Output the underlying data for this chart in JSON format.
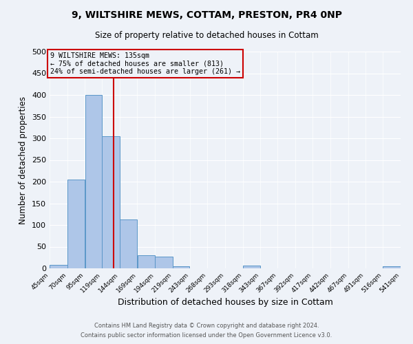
{
  "title1": "9, WILTSHIRE MEWS, COTTAM, PRESTON, PR4 0NP",
  "title2": "Size of property relative to detached houses in Cottam",
  "xlabel": "Distribution of detached houses by size in Cottam",
  "ylabel": "Number of detached properties",
  "bar_edges": [
    45,
    70,
    95,
    119,
    144,
    169,
    194,
    219,
    243,
    268,
    293,
    318,
    343,
    367,
    392,
    417,
    442,
    467,
    491,
    516,
    541
  ],
  "bar_heights": [
    8,
    205,
    400,
    305,
    113,
    30,
    27,
    5,
    0,
    0,
    0,
    7,
    0,
    0,
    0,
    0,
    0,
    0,
    0,
    4
  ],
  "bar_color": "#aec6e8",
  "bar_edge_color": "#5a96c8",
  "property_size": 135,
  "vline_color": "#cc0000",
  "annotation_box_edge_color": "#cc0000",
  "annotation_text_line1": "9 WILTSHIRE MEWS: 135sqm",
  "annotation_text_line2": "← 75% of detached houses are smaller (813)",
  "annotation_text_line3": "24% of semi-detached houses are larger (261) →",
  "ylim": [
    0,
    500
  ],
  "yticks": [
    0,
    50,
    100,
    150,
    200,
    250,
    300,
    350,
    400,
    450,
    500
  ],
  "tick_labels": [
    "45sqm",
    "70sqm",
    "95sqm",
    "119sqm",
    "144sqm",
    "169sqm",
    "194sqm",
    "219sqm",
    "243sqm",
    "268sqm",
    "293sqm",
    "318sqm",
    "343sqm",
    "367sqm",
    "392sqm",
    "417sqm",
    "442sqm",
    "467sqm",
    "491sqm",
    "516sqm",
    "541sqm"
  ],
  "footer1": "Contains HM Land Registry data © Crown copyright and database right 2024.",
  "footer2": "Contains public sector information licensed under the Open Government Licence v3.0.",
  "bg_color": "#eef2f8"
}
